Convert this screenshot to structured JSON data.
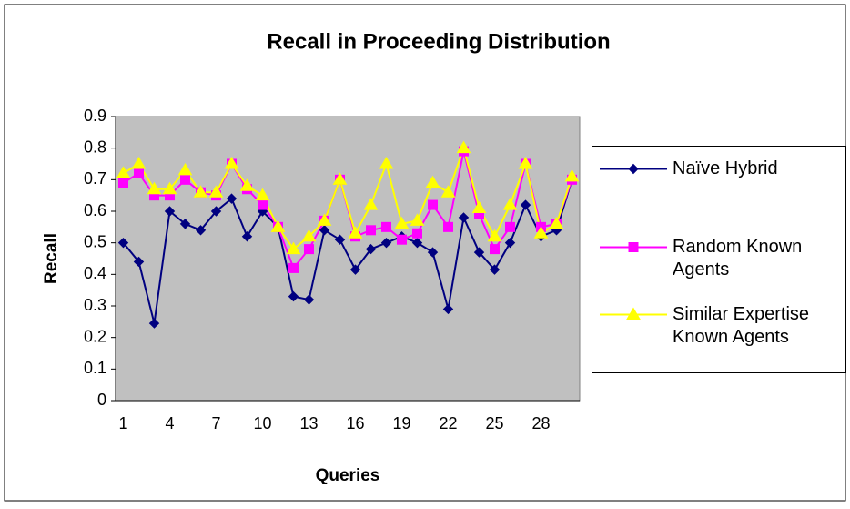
{
  "chart_data": {
    "type": "line",
    "title": "Recall in Proceeding Distribution",
    "x_label": "Queries",
    "y_label": "Recall",
    "categories": [
      1,
      null,
      null,
      4,
      null,
      null,
      7,
      null,
      null,
      10,
      null,
      null,
      13,
      null,
      null,
      16,
      null,
      null,
      19,
      null,
      null,
      22,
      null,
      null,
      25,
      null,
      null,
      28,
      null,
      null
    ],
    "series": [
      {
        "name": "Naïve Hybrid",
        "color": "#000080",
        "marker": "diamond",
        "values": [
          0.5,
          0.44,
          0.245,
          0.6,
          0.56,
          0.54,
          0.6,
          0.64,
          0.52,
          0.6,
          0.55,
          0.33,
          0.32,
          0.54,
          0.51,
          0.415,
          0.48,
          0.5,
          0.52,
          0.5,
          0.47,
          0.29,
          0.58,
          0.47,
          0.415,
          0.5,
          0.62,
          0.52,
          0.54,
          0.7
        ]
      },
      {
        "name": "Random Known Agents",
        "color": "#ff00ff",
        "marker": "square",
        "values": [
          0.69,
          0.72,
          0.65,
          0.65,
          0.7,
          0.66,
          0.65,
          0.75,
          0.67,
          0.62,
          0.55,
          0.42,
          0.48,
          0.57,
          0.7,
          0.52,
          0.54,
          0.55,
          0.51,
          0.53,
          0.62,
          0.55,
          0.79,
          0.59,
          0.48,
          0.55,
          0.75,
          0.55,
          0.56,
          0.7
        ]
      },
      {
        "name": "Similar Expertise Known Agents",
        "color": "#ffff00",
        "marker": "triangle",
        "values": [
          0.72,
          0.75,
          0.67,
          0.67,
          0.73,
          0.66,
          0.66,
          0.75,
          0.68,
          0.65,
          0.55,
          0.48,
          0.52,
          0.57,
          0.7,
          0.53,
          0.62,
          0.75,
          0.56,
          0.57,
          0.69,
          0.66,
          0.8,
          0.61,
          0.52,
          0.62,
          0.75,
          0.53,
          0.56,
          0.71
        ]
      }
    ],
    "ylim": [
      0,
      0.9
    ],
    "yticks": [
      0,
      0.1,
      0.2,
      0.3,
      0.4,
      0.5,
      0.6,
      0.7,
      0.8,
      0.9
    ],
    "grid": false,
    "legend": "right",
    "plot_background": "#c0c0c0"
  }
}
